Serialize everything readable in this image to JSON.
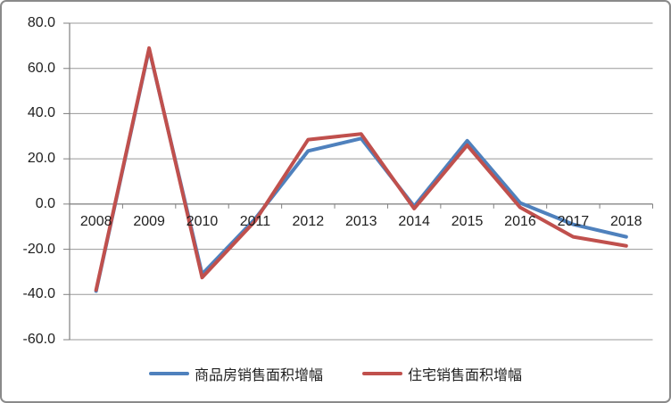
{
  "chart_data": {
    "type": "line",
    "title": "",
    "xlabel": "",
    "ylabel": "",
    "categories": [
      "2008",
      "2009",
      "2010",
      "2011",
      "2012",
      "2013",
      "2014",
      "2015",
      "2016",
      "2017",
      "2018"
    ],
    "series": [
      {
        "name": "商品房销售面积增幅",
        "color": "#4f81bd",
        "values": [
          -38.5,
          68.5,
          -31.0,
          -6.5,
          23.5,
          29.0,
          -1.0,
          28.0,
          0.5,
          -9.0,
          -14.5
        ]
      },
      {
        "name": "住宅销售面积增幅",
        "color": "#c0504d",
        "values": [
          -38.0,
          69.0,
          -32.5,
          -7.5,
          28.5,
          31.0,
          -2.0,
          26.0,
          -1.5,
          -14.5,
          -18.5
        ]
      }
    ],
    "ylim": [
      -60,
      80
    ],
    "y_ticks": [
      {
        "value": 80,
        "label": "80.0"
      },
      {
        "value": 60,
        "label": "60.0"
      },
      {
        "value": 40,
        "label": "40.0"
      },
      {
        "value": 20,
        "label": "20.0"
      },
      {
        "value": 0,
        "label": "0.0"
      },
      {
        "value": -20,
        "label": "-20.0"
      },
      {
        "value": -40,
        "label": "-40.0"
      },
      {
        "value": -60,
        "label": "-60.0"
      }
    ],
    "grid": true,
    "legend_position": "bottom"
  },
  "style": {
    "gridline_color": "#989898",
    "axis_color": "#808080",
    "text_color": "#1f1f1f",
    "background": "#ffffff",
    "border_color": "#8a8a8a"
  }
}
